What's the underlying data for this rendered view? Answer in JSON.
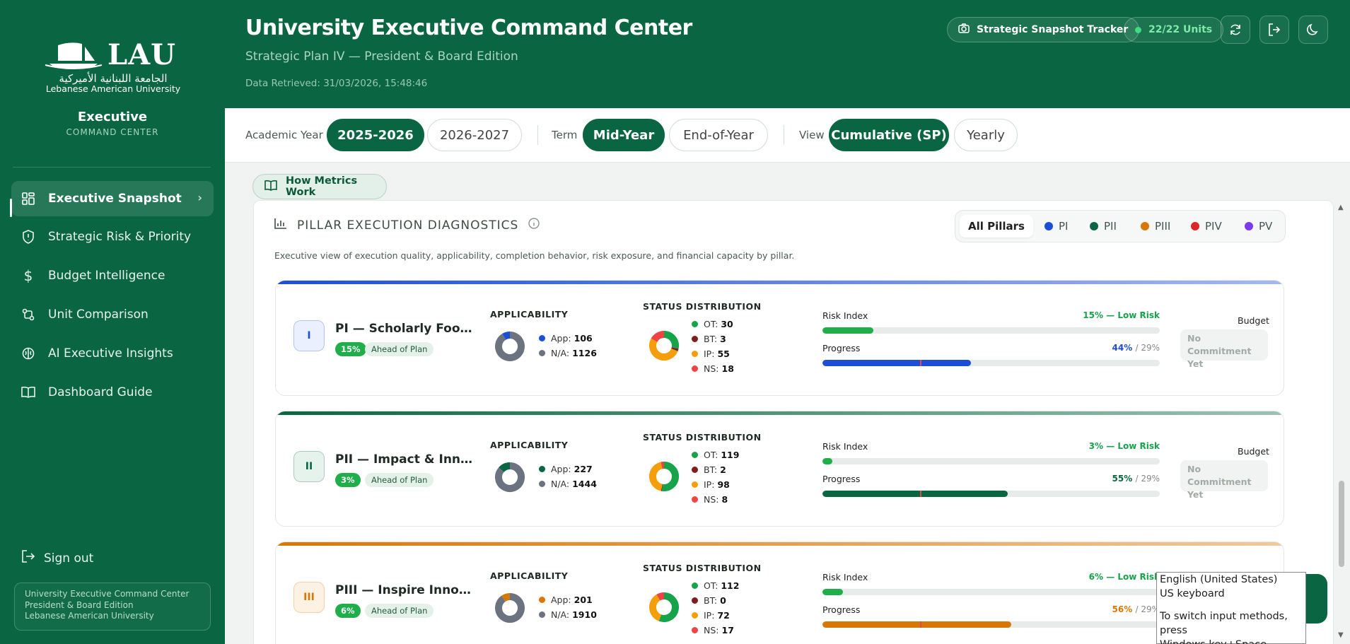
{
  "sidebar": {
    "logo_text": "LAU",
    "logo_arabic": "الجامعة اللبنانية الأميركية",
    "logo_sub": "Lebanese American University",
    "brand_title": "Executive",
    "brand_sub": "COMMAND CENTER",
    "nav": [
      {
        "label": "Executive Snapshot",
        "icon": "grid-icon",
        "active": true
      },
      {
        "label": "Strategic Risk & Priority",
        "icon": "shield-icon"
      },
      {
        "label": "Budget Intelligence",
        "icon": "dollar-icon"
      },
      {
        "label": "Unit Comparison",
        "icon": "compare-icon"
      },
      {
        "label": "AI Executive Insights",
        "icon": "brain-icon"
      },
      {
        "label": "Dashboard Guide",
        "icon": "book-icon"
      }
    ],
    "signout": "Sign out",
    "footer_lines": [
      "University Executive Command Center",
      "President & Board Edition",
      "Lebanese American University"
    ]
  },
  "header": {
    "title": "University Executive Command Center",
    "subtitle": "Strategic Plan IV — President & Board Edition",
    "retrieved": "Data Retrieved: 31/03/2026, 15:48:46",
    "snapshot_btn": "Strategic Snapshot Tracker",
    "units_btn": "22/22 Units",
    "units_color": "#3ddc84"
  },
  "filters": {
    "academic_year_label": "Academic Year",
    "years": [
      "2025-2026",
      "2026-2027"
    ],
    "term_label": "Term",
    "terms": [
      "Mid-Year",
      "End-of-Year"
    ],
    "view_label": "View",
    "views": [
      "Cumulative (SP)",
      "Yearly"
    ]
  },
  "how_metrics": "How Metrics Work",
  "panel": {
    "title": "PILLAR EXECUTION DIAGNOSTICS",
    "description": "Executive view of execution quality, applicability, completion behavior, risk exposure, and financial capacity by pillar.",
    "segments": [
      {
        "label": "All Pillars",
        "selected": true
      },
      {
        "label": "PI",
        "color": "#1d4ed8"
      },
      {
        "label": "PII",
        "color": "#0a6642"
      },
      {
        "label": "PIII",
        "color": "#d97706"
      },
      {
        "label": "PIV",
        "color": "#dc2626"
      },
      {
        "label": "PV",
        "color": "#7c3aed"
      }
    ]
  },
  "labels": {
    "applicability": "APPLICABILITY",
    "status": "STATUS DISTRIBUTION",
    "risk_index": "Risk Index",
    "progress": "Progress",
    "budget": "Budget",
    "no_commitment_1": "No Commitment",
    "no_commitment_2": "Yet",
    "app": "App:",
    "na": "N/A:",
    "ot": "OT:",
    "bt": "BT:",
    "ip": "IP:",
    "ns": "NS:",
    "target": "/ 29%"
  },
  "status_colors": {
    "ot": "#16a34a",
    "bt": "#7f1d1d",
    "ip": "#f59e0b",
    "ns": "#ef4444",
    "na": "#6b7280"
  },
  "pillars": [
    {
      "numeral": "I",
      "name": "PI — Scholarly Footpr...",
      "pct": "15%",
      "plan": "Ahead of Plan",
      "color": "#1d4ed8",
      "tint": "#eaf0fd",
      "app": 106,
      "na": 1126,
      "ot": 30,
      "bt": 3,
      "ip": 55,
      "ns": 18,
      "risk_text": "15% — Low Risk",
      "risk": 15,
      "progress_text": "44%",
      "progress": 44,
      "target": 29
    },
    {
      "numeral": "II",
      "name": "PII — Impact & Innov...",
      "pct": "3%",
      "plan": "Ahead of Plan",
      "color": "#0a6642",
      "tint": "#e6f2ec",
      "app": 227,
      "na": 1444,
      "ot": 119,
      "bt": 2,
      "ip": 98,
      "ns": 8,
      "risk_text": "3% — Low Risk",
      "risk": 3,
      "progress_text": "55%",
      "progress": 55,
      "target": 29
    },
    {
      "numeral": "III",
      "name": "PIII — Inspire Innovati...",
      "pct": "6%",
      "plan": "Ahead of Plan",
      "color": "#d97706",
      "tint": "#fdf1e3",
      "app": 201,
      "na": 1910,
      "ot": 112,
      "bt": 0,
      "ip": 72,
      "ns": 17,
      "risk_text": "6% — Low Risk",
      "risk": 6,
      "progress_text": "56%",
      "progress": 56,
      "target": 29
    }
  ],
  "tooltip": {
    "line1": "English (United States)",
    "line2": "US keyboard",
    "line3": "To switch input methods, press",
    "line4": "Windows key+Space."
  }
}
